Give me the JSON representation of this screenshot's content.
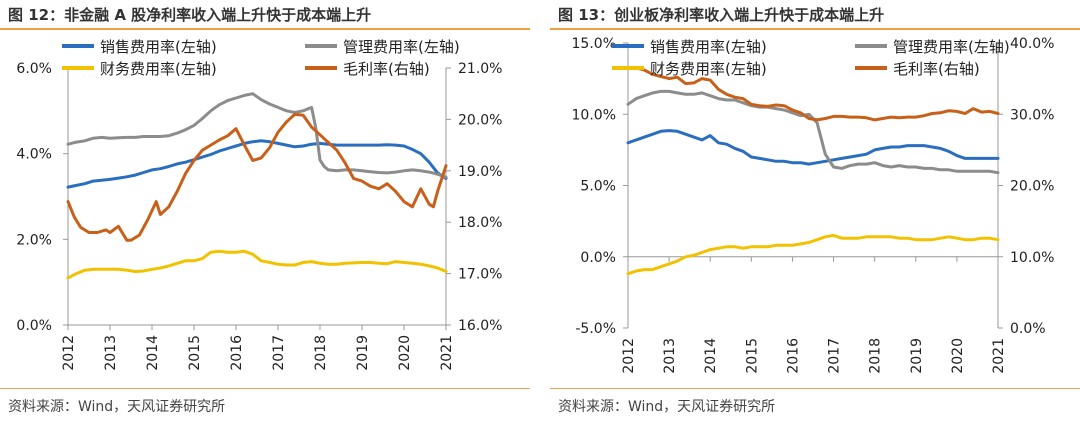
{
  "colors": {
    "blue": "#2a6ebf",
    "gray": "#8c8c8c",
    "yellow": "#f2c200",
    "orange": "#c8601a",
    "rule": "#f0a040"
  },
  "chart_data": [
    {
      "type": "line",
      "title": "图 12：非金融 A 股净利率收入端上升快于成本端上升",
      "source": "资料来源：Wind，天风证券研究所",
      "x_ticks": [
        "2012",
        "2013",
        "2014",
        "2015",
        "2016",
        "2017",
        "2018",
        "2019",
        "2020",
        "2021"
      ],
      "y_left": {
        "min": 0,
        "max": 6,
        "ticks": [
          0,
          2,
          4,
          6
        ],
        "labels": [
          "0.0%",
          "2.0%",
          "4.0%",
          "6.0%"
        ]
      },
      "y_right": {
        "min": 16,
        "max": 21,
        "ticks": [
          16,
          17,
          18,
          19,
          20,
          21
        ],
        "labels": [
          "16.0%",
          "17.0%",
          "18.0%",
          "19.0%",
          "20.0%",
          "21.0%"
        ]
      },
      "legend": [
        {
          "name": "销售费用率(左轴)",
          "color": "#2a6ebf",
          "row": 0,
          "col": 0
        },
        {
          "name": "管理费用率(左轴)",
          "color": "#8c8c8c",
          "row": 0,
          "col": 1
        },
        {
          "name": "财务费用率(左轴)",
          "color": "#f2c200",
          "row": 1,
          "col": 0
        },
        {
          "name": "毛利率(右轴)",
          "color": "#c8601a",
          "row": 1,
          "col": 1
        }
      ],
      "series": [
        {
          "name": "销售费用率(左轴)",
          "axis": "left",
          "color": "#2a6ebf",
          "x": [
            0,
            0.2,
            0.4,
            0.6,
            0.8,
            1.0,
            1.2,
            1.4,
            1.6,
            1.8,
            2.0,
            2.2,
            2.4,
            2.6,
            2.8,
            3.0,
            3.2,
            3.4,
            3.6,
            3.8,
            4.0,
            4.2,
            4.4,
            4.6,
            4.8,
            5.0,
            5.2,
            5.4,
            5.6,
            5.8,
            6.0,
            6.2,
            6.4,
            6.6,
            6.8,
            7.0,
            7.2,
            7.4,
            7.6,
            7.8,
            8.0,
            8.2,
            8.4,
            8.6,
            8.8,
            9.0
          ],
          "values": [
            3.22,
            3.26,
            3.3,
            3.36,
            3.38,
            3.4,
            3.43,
            3.46,
            3.5,
            3.56,
            3.62,
            3.65,
            3.7,
            3.76,
            3.8,
            3.86,
            3.92,
            3.98,
            4.06,
            4.12,
            4.18,
            4.24,
            4.28,
            4.3,
            4.28,
            4.24,
            4.2,
            4.16,
            4.18,
            4.22,
            4.24,
            4.22,
            4.2,
            4.2,
            4.2,
            4.2,
            4.2,
            4.2,
            4.21,
            4.2,
            4.18,
            4.1,
            4.0,
            3.8,
            3.55,
            3.42
          ]
        },
        {
          "name": "管理费用率(左轴)",
          "axis": "left",
          "color": "#8c8c8c",
          "x": [
            0,
            0.2,
            0.4,
            0.6,
            0.8,
            1.0,
            1.2,
            1.4,
            1.6,
            1.8,
            2.0,
            2.2,
            2.4,
            2.6,
            2.8,
            3.0,
            3.2,
            3.4,
            3.6,
            3.8,
            4.0,
            4.2,
            4.4,
            4.6,
            4.8,
            5.0,
            5.2,
            5.4,
            5.6,
            5.8,
            5.9,
            6.0,
            6.1,
            6.2,
            6.4,
            6.6,
            6.8,
            7.0,
            7.2,
            7.4,
            7.6,
            7.8,
            8.0,
            8.2,
            8.4,
            8.6,
            8.8,
            9.0
          ],
          "values": [
            4.22,
            4.27,
            4.3,
            4.36,
            4.38,
            4.36,
            4.37,
            4.38,
            4.38,
            4.4,
            4.4,
            4.4,
            4.42,
            4.48,
            4.56,
            4.66,
            4.82,
            5.0,
            5.14,
            5.24,
            5.3,
            5.36,
            5.4,
            5.26,
            5.16,
            5.08,
            5.0,
            4.96,
            5.0,
            5.08,
            4.6,
            3.85,
            3.7,
            3.62,
            3.6,
            3.62,
            3.62,
            3.6,
            3.58,
            3.56,
            3.55,
            3.57,
            3.6,
            3.62,
            3.6,
            3.57,
            3.52,
            3.45
          ]
        },
        {
          "name": "财务费用率(左轴)",
          "axis": "left",
          "color": "#f2c200",
          "x": [
            0,
            0.2,
            0.4,
            0.6,
            0.8,
            1.0,
            1.2,
            1.4,
            1.6,
            1.8,
            2.0,
            2.2,
            2.4,
            2.6,
            2.8,
            3.0,
            3.2,
            3.4,
            3.6,
            3.8,
            4.0,
            4.2,
            4.4,
            4.6,
            4.8,
            5.0,
            5.2,
            5.4,
            5.6,
            5.8,
            6.0,
            6.2,
            6.4,
            6.6,
            6.8,
            7.0,
            7.2,
            7.4,
            7.6,
            7.8,
            8.0,
            8.2,
            8.4,
            8.6,
            8.8,
            9.0
          ],
          "values": [
            1.1,
            1.2,
            1.28,
            1.3,
            1.3,
            1.3,
            1.3,
            1.28,
            1.25,
            1.26,
            1.3,
            1.33,
            1.38,
            1.44,
            1.5,
            1.5,
            1.55,
            1.7,
            1.72,
            1.7,
            1.7,
            1.72,
            1.65,
            1.5,
            1.46,
            1.42,
            1.4,
            1.4,
            1.46,
            1.48,
            1.44,
            1.42,
            1.42,
            1.44,
            1.45,
            1.46,
            1.46,
            1.44,
            1.43,
            1.48,
            1.46,
            1.44,
            1.42,
            1.38,
            1.33,
            1.25
          ]
        },
        {
          "name": "毛利率(右轴)",
          "axis": "right",
          "color": "#c8601a",
          "x": [
            0,
            0.15,
            0.3,
            0.5,
            0.7,
            0.9,
            1.0,
            1.2,
            1.4,
            1.5,
            1.7,
            1.9,
            2.1,
            2.2,
            2.4,
            2.6,
            2.8,
            3.0,
            3.2,
            3.4,
            3.6,
            3.8,
            4.0,
            4.2,
            4.4,
            4.6,
            4.8,
            5.0,
            5.2,
            5.4,
            5.6,
            5.8,
            6.0,
            6.2,
            6.4,
            6.6,
            6.8,
            7.0,
            7.2,
            7.4,
            7.6,
            7.8,
            8.0,
            8.2,
            8.4,
            8.6,
            8.7,
            8.8,
            9.0
          ],
          "values": [
            18.4,
            18.1,
            17.9,
            17.8,
            17.8,
            17.85,
            17.8,
            17.92,
            17.65,
            17.65,
            17.75,
            18.05,
            18.4,
            18.15,
            18.3,
            18.6,
            18.95,
            19.2,
            19.4,
            19.5,
            19.6,
            19.68,
            19.82,
            19.5,
            19.2,
            19.25,
            19.45,
            19.75,
            19.95,
            20.1,
            20.08,
            19.85,
            19.7,
            19.55,
            19.4,
            19.15,
            18.85,
            18.8,
            18.7,
            18.65,
            18.75,
            18.6,
            18.4,
            18.3,
            18.65,
            18.35,
            18.3,
            18.6,
            19.1
          ]
        }
      ]
    },
    {
      "type": "line",
      "title": "图 13：创业板净利率收入端上升快于成本端上升",
      "source": "资料来源：Wind，天风证券研究所",
      "x_ticks": [
        "2012",
        "2013",
        "2014",
        "2015",
        "2016",
        "2017",
        "2018",
        "2019",
        "2020",
        "2021"
      ],
      "y_left": {
        "min": -5,
        "max": 15,
        "ticks": [
          -5,
          0,
          5,
          10,
          15
        ],
        "labels": [
          "-5.0%",
          "0.0%",
          "5.0%",
          "10.0%",
          "15.0%"
        ]
      },
      "y_right": {
        "min": 0,
        "max": 40,
        "ticks": [
          0,
          10,
          20,
          30,
          40
        ],
        "labels": [
          "0.0%",
          "10.0%",
          "20.0%",
          "30.0%",
          "40.0%"
        ]
      },
      "legend": [
        {
          "name": "销售费用率(左轴)",
          "color": "#2a6ebf",
          "row": 0,
          "col": 0
        },
        {
          "name": "管理费用率(左轴)",
          "color": "#8c8c8c",
          "row": 0,
          "col": 1
        },
        {
          "name": "财务费用率(左轴)",
          "color": "#f2c200",
          "row": 1,
          "col": 0
        },
        {
          "name": "毛利率(右轴)",
          "color": "#c8601a",
          "row": 1,
          "col": 1
        }
      ],
      "series": [
        {
          "name": "销售费用率(左轴)",
          "axis": "left",
          "color": "#2a6ebf",
          "x": [
            0,
            0.2,
            0.4,
            0.6,
            0.8,
            1.0,
            1.2,
            1.4,
            1.6,
            1.8,
            2.0,
            2.2,
            2.4,
            2.6,
            2.8,
            3.0,
            3.2,
            3.4,
            3.6,
            3.8,
            4.0,
            4.2,
            4.4,
            4.6,
            4.8,
            5.0,
            5.2,
            5.4,
            5.6,
            5.8,
            6.0,
            6.2,
            6.4,
            6.6,
            6.8,
            7.0,
            7.2,
            7.4,
            7.6,
            7.8,
            8.0,
            8.2,
            8.4,
            8.6,
            8.8,
            9.0
          ],
          "values": [
            8.0,
            8.2,
            8.4,
            8.6,
            8.8,
            8.85,
            8.8,
            8.6,
            8.4,
            8.2,
            8.5,
            8.0,
            7.9,
            7.6,
            7.4,
            7.0,
            6.9,
            6.8,
            6.7,
            6.7,
            6.6,
            6.6,
            6.5,
            6.6,
            6.7,
            6.8,
            6.9,
            7.0,
            7.1,
            7.2,
            7.5,
            7.6,
            7.7,
            7.7,
            7.8,
            7.8,
            7.8,
            7.7,
            7.6,
            7.4,
            7.1,
            6.9,
            6.9,
            6.9,
            6.9,
            6.9
          ]
        },
        {
          "name": "管理费用率(左轴)",
          "axis": "left",
          "color": "#8c8c8c",
          "x": [
            0,
            0.2,
            0.4,
            0.6,
            0.8,
            1.0,
            1.2,
            1.4,
            1.6,
            1.8,
            2.0,
            2.2,
            2.4,
            2.6,
            2.8,
            3.0,
            3.2,
            3.4,
            3.6,
            3.8,
            4.0,
            4.2,
            4.4,
            4.6,
            4.8,
            5.0,
            5.2,
            5.4,
            5.6,
            5.8,
            6.0,
            6.2,
            6.4,
            6.6,
            6.8,
            7.0,
            7.2,
            7.4,
            7.6,
            7.8,
            8.0,
            8.2,
            8.4,
            8.6,
            8.8,
            9.0
          ],
          "values": [
            10.7,
            11.1,
            11.3,
            11.5,
            11.6,
            11.6,
            11.5,
            11.4,
            11.4,
            11.5,
            11.3,
            11.1,
            11.0,
            11.0,
            10.8,
            10.6,
            10.5,
            10.5,
            10.4,
            10.3,
            10.1,
            9.9,
            10.0,
            9.4,
            7.2,
            6.3,
            6.2,
            6.4,
            6.5,
            6.5,
            6.6,
            6.4,
            6.3,
            6.4,
            6.3,
            6.3,
            6.2,
            6.2,
            6.1,
            6.1,
            6.0,
            6.0,
            6.0,
            6.0,
            6.0,
            5.9
          ]
        },
        {
          "name": "财务费用率(左轴)",
          "axis": "left",
          "color": "#f2c200",
          "x": [
            0,
            0.2,
            0.4,
            0.6,
            0.8,
            1.0,
            1.2,
            1.4,
            1.6,
            1.8,
            2.0,
            2.2,
            2.4,
            2.6,
            2.8,
            3.0,
            3.2,
            3.4,
            3.6,
            3.8,
            4.0,
            4.2,
            4.4,
            4.6,
            4.8,
            5.0,
            5.2,
            5.4,
            5.6,
            5.8,
            6.0,
            6.2,
            6.4,
            6.6,
            6.8,
            7.0,
            7.2,
            7.4,
            7.6,
            7.8,
            8.0,
            8.2,
            8.4,
            8.6,
            8.8,
            9.0
          ],
          "values": [
            -1.2,
            -1.0,
            -0.9,
            -0.9,
            -0.7,
            -0.5,
            -0.3,
            0.0,
            0.1,
            0.3,
            0.5,
            0.6,
            0.7,
            0.7,
            0.6,
            0.7,
            0.7,
            0.7,
            0.8,
            0.8,
            0.8,
            0.9,
            1.0,
            1.2,
            1.4,
            1.5,
            1.3,
            1.3,
            1.3,
            1.4,
            1.4,
            1.4,
            1.4,
            1.3,
            1.3,
            1.2,
            1.2,
            1.2,
            1.3,
            1.4,
            1.3,
            1.2,
            1.2,
            1.3,
            1.3,
            1.2
          ]
        },
        {
          "name": "毛利率(右轴)",
          "axis": "right",
          "color": "#c8601a",
          "x": [
            0,
            0.2,
            0.4,
            0.6,
            0.8,
            1.0,
            1.2,
            1.4,
            1.6,
            1.8,
            2.0,
            2.2,
            2.4,
            2.6,
            2.8,
            3.0,
            3.2,
            3.4,
            3.6,
            3.8,
            4.0,
            4.2,
            4.4,
            4.6,
            4.8,
            5.0,
            5.2,
            5.4,
            5.6,
            5.8,
            6.0,
            6.2,
            6.4,
            6.6,
            6.8,
            7.0,
            7.2,
            7.4,
            7.6,
            7.8,
            8.0,
            8.2,
            8.4,
            8.6,
            8.8,
            9.0
          ],
          "values": [
            36.5,
            36.5,
            36.2,
            35.6,
            35.3,
            35.0,
            35.2,
            34.3,
            34.4,
            35.0,
            34.8,
            33.5,
            32.8,
            32.4,
            32.2,
            31.4,
            31.2,
            31.1,
            31.3,
            31.2,
            30.6,
            30.2,
            29.4,
            29.2,
            29.4,
            29.7,
            29.7,
            29.6,
            29.6,
            29.5,
            29.2,
            29.4,
            29.6,
            29.5,
            29.6,
            29.6,
            29.8,
            30.1,
            30.2,
            30.5,
            30.4,
            30.1,
            30.8,
            30.3,
            30.4,
            30.1
          ]
        }
      ]
    }
  ]
}
